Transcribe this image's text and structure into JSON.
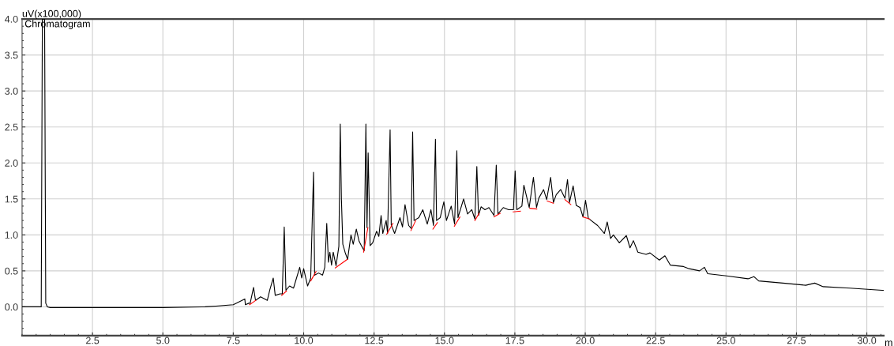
{
  "chart_data": {
    "type": "line",
    "title": "Chromatogram",
    "xlabel": "m",
    "ylabel": "uV(x100,000)",
    "xlim": [
      0,
      30.6
    ],
    "ylim": [
      -0.4,
      4.0
    ],
    "xticks": [
      2.5,
      {
        "value": 5,
        "label": "5.0"
      },
      7.5,
      {
        "value": 10,
        "label": "10.0"
      },
      12.5,
      {
        "value": 15,
        "label": "15.0"
      },
      17.5,
      {
        "value": 20,
        "label": "20.0"
      },
      22.5,
      {
        "value": 25,
        "label": "25.0"
      },
      27.5,
      {
        "value": 30,
        "label": "30.0"
      }
    ],
    "yticks": [
      {
        "value": 0,
        "label": "0.0"
      },
      0.5,
      {
        "value": 1,
        "label": "1.0"
      },
      1.5,
      {
        "value": 2,
        "label": "2.0"
      },
      2.5,
      {
        "value": 3,
        "label": "3.0"
      },
      3.5,
      {
        "value": 4,
        "label": "4.0"
      }
    ],
    "grid": true,
    "marker": "none",
    "line_style": "solid",
    "series": [
      {
        "color": "#000000",
        "x": [
          0,
          0.68,
          0.72,
          0.8,
          0.84,
          0.9,
          1.0,
          5.0,
          6.5,
          6.88,
          7.5,
          7.91,
          7.93,
          8.05,
          8.1,
          8.22,
          8.29,
          8.47,
          8.71,
          8.8,
          8.92,
          8.99,
          9.16,
          9.24,
          9.31,
          9.37,
          9.5,
          9.64,
          9.86,
          9.93,
          10.0,
          10.14,
          10.25,
          10.35,
          10.39,
          10.53,
          10.67,
          10.75,
          10.82,
          10.88,
          10.93,
          10.99,
          11.05,
          11.15,
          11.25,
          11.3,
          11.34,
          11.39,
          11.47,
          11.56,
          11.68,
          11.76,
          11.87,
          11.97,
          12.05,
          12.15,
          12.21,
          12.25,
          12.29,
          12.36,
          12.45,
          12.59,
          12.67,
          12.75,
          12.81,
          12.93,
          12.98,
          13.07,
          13.11,
          13.23,
          13.42,
          13.51,
          13.6,
          13.73,
          13.82,
          13.87,
          13.92,
          14.09,
          14.23,
          14.39,
          14.52,
          14.61,
          14.68,
          14.72,
          14.85,
          14.98,
          15.07,
          15.24,
          15.36,
          15.44,
          15.48,
          15.68,
          15.82,
          15.97,
          16.08,
          16.15,
          16.21,
          16.3,
          16.44,
          16.58,
          16.76,
          16.84,
          16.9,
          17.09,
          17.28,
          17.45,
          17.51,
          17.57,
          17.75,
          17.82,
          18.01,
          18.16,
          18.27,
          18.35,
          18.52,
          18.63,
          18.77,
          18.87,
          18.97,
          19.13,
          19.28,
          19.37,
          19.44,
          19.57,
          19.68,
          19.82,
          19.92,
          20.01,
          20.11,
          20.44,
          20.68,
          20.78,
          20.9,
          21.0,
          21.21,
          21.46,
          21.59,
          21.71,
          21.87,
          22.16,
          22.3,
          22.63,
          22.83,
          23.02,
          23.49,
          23.69,
          24.06,
          24.23,
          24.35,
          25.02,
          25.78,
          25.99,
          26.16,
          27.02,
          27.83,
          28.15,
          28.45,
          29.4,
          30.55,
          30.6
        ],
        "values": [
          0.0,
          0.0,
          4.0,
          4.0,
          0.05,
          0.0,
          -0.01,
          -0.01,
          0.0,
          0.01,
          0.03,
          0.11,
          0.03,
          0.05,
          0.05,
          0.27,
          0.09,
          0.14,
          0.09,
          0.24,
          0.4,
          0.16,
          0.18,
          0.18,
          1.11,
          0.23,
          0.29,
          0.26,
          0.55,
          0.4,
          0.53,
          0.29,
          0.4,
          1.87,
          0.44,
          0.47,
          0.44,
          0.55,
          1.16,
          0.62,
          0.76,
          0.58,
          0.76,
          0.57,
          0.84,
          2.54,
          1.51,
          0.87,
          0.76,
          0.66,
          1.0,
          0.87,
          1.08,
          0.91,
          0.85,
          0.78,
          2.54,
          1.1,
          2.14,
          0.85,
          0.89,
          1.05,
          0.98,
          1.27,
          1.02,
          1.2,
          1.02,
          2.46,
          1.14,
          1.02,
          1.24,
          1.11,
          1.42,
          1.13,
          1.09,
          2.43,
          1.2,
          1.24,
          1.35,
          1.15,
          1.35,
          1.13,
          2.33,
          1.2,
          1.24,
          1.46,
          1.2,
          1.4,
          1.15,
          2.17,
          1.24,
          1.5,
          1.29,
          1.35,
          1.22,
          1.95,
          1.27,
          1.39,
          1.35,
          1.38,
          1.27,
          1.97,
          1.29,
          1.38,
          1.35,
          1.35,
          1.89,
          1.35,
          1.4,
          1.69,
          1.38,
          1.8,
          1.38,
          1.51,
          1.63,
          1.49,
          1.8,
          1.45,
          1.56,
          1.63,
          1.51,
          1.77,
          1.45,
          1.68,
          1.41,
          1.38,
          1.25,
          1.48,
          1.23,
          1.13,
          1.02,
          1.18,
          0.95,
          1.0,
          0.89,
          0.99,
          0.82,
          0.92,
          0.76,
          0.73,
          0.75,
          0.65,
          0.71,
          0.58,
          0.56,
          0.53,
          0.5,
          0.55,
          0.46,
          0.43,
          0.39,
          0.42,
          0.36,
          0.33,
          0.3,
          0.33,
          0.28,
          0.26,
          0.23,
          0.23
        ]
      },
      {
        "color": "#ff0000",
        "x": [
          8.08,
          8.3
        ],
        "values": [
          0.03,
          0.09
        ]
      },
      {
        "color": "#ff0000",
        "x": [
          9.22,
          9.39
        ],
        "values": [
          0.16,
          0.22
        ]
      },
      {
        "color": "#ff0000",
        "x": [
          10.25,
          10.44
        ],
        "values": [
          0.36,
          0.49
        ]
      },
      {
        "color": "#ff0000",
        "x": [
          11.12,
          11.55
        ],
        "values": [
          0.54,
          0.66
        ]
      },
      {
        "color": "#ff0000",
        "x": [
          12.13,
          12.28
        ],
        "values": [
          0.76,
          1.1
        ]
      },
      {
        "color": "#ff0000",
        "x": [
          12.95,
          13.17
        ],
        "values": [
          1.01,
          1.16
        ]
      },
      {
        "color": "#ff0000",
        "x": [
          13.81,
          13.98
        ],
        "values": [
          1.06,
          1.2
        ]
      },
      {
        "color": "#ff0000",
        "x": [
          14.59,
          14.75
        ],
        "values": [
          1.08,
          1.17
        ]
      },
      {
        "color": "#ff0000",
        "x": [
          15.35,
          15.55
        ],
        "values": [
          1.12,
          1.25
        ]
      },
      {
        "color": "#ff0000",
        "x": [
          16.08,
          16.23
        ],
        "values": [
          1.2,
          1.3
        ]
      },
      {
        "color": "#ff0000",
        "x": [
          16.76,
          16.98
        ],
        "values": [
          1.25,
          1.3
        ]
      },
      {
        "color": "#ff0000",
        "x": [
          17.44,
          17.7
        ],
        "values": [
          1.32,
          1.33
        ]
      },
      {
        "color": "#ff0000",
        "x": [
          18.03,
          18.28
        ],
        "values": [
          1.37,
          1.36
        ]
      },
      {
        "color": "#ff0000",
        "x": [
          18.65,
          18.87
        ],
        "values": [
          1.47,
          1.44
        ]
      },
      {
        "color": "#ff0000",
        "x": [
          19.28,
          19.49
        ],
        "values": [
          1.49,
          1.42
        ]
      },
      {
        "color": "#ff0000",
        "x": [
          19.92,
          20.16
        ],
        "values": [
          1.25,
          1.22
        ]
      }
    ]
  }
}
